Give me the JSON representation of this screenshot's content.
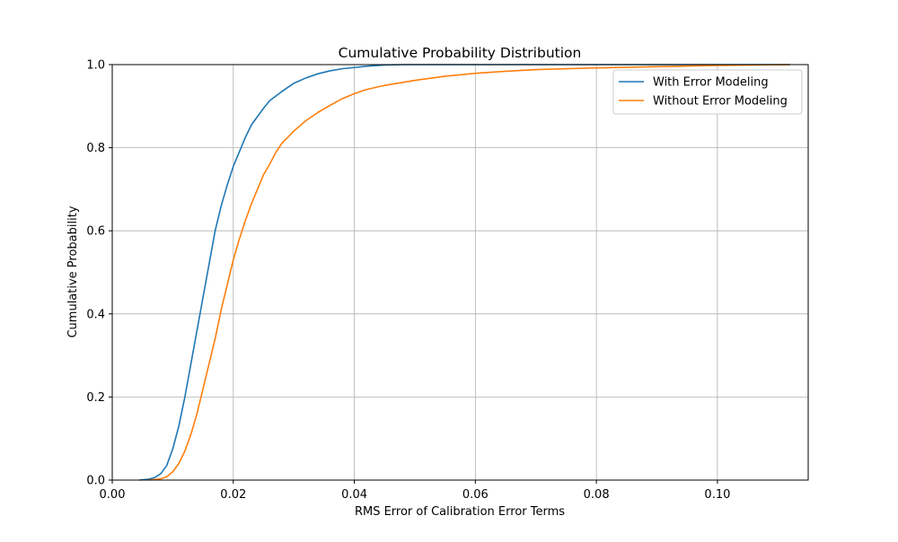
{
  "chart_data": {
    "type": "line",
    "title": "Cumulative Probability Distribution",
    "xlabel": "RMS Error of Calibration Error Terms",
    "ylabel": "Cumulative Probability",
    "xlim": [
      0.0,
      0.115
    ],
    "ylim": [
      0.0,
      1.0
    ],
    "x_ticks": [
      0.0,
      0.02,
      0.04,
      0.06,
      0.08,
      0.1
    ],
    "x_tick_labels": [
      "0.00",
      "0.02",
      "0.04",
      "0.06",
      "0.08",
      "0.10"
    ],
    "y_ticks": [
      0.0,
      0.2,
      0.4,
      0.6,
      0.8,
      1.0
    ],
    "y_tick_labels": [
      "0.0",
      "0.2",
      "0.4",
      "0.6",
      "0.8",
      "1.0"
    ],
    "grid": true,
    "legend_position": "top-right",
    "series": [
      {
        "name": "With Error Modeling",
        "color": "#1f77b4",
        "points": [
          [
            0.0045,
            0.0
          ],
          [
            0.006,
            0.002
          ],
          [
            0.007,
            0.006
          ],
          [
            0.008,
            0.015
          ],
          [
            0.009,
            0.035
          ],
          [
            0.01,
            0.075
          ],
          [
            0.011,
            0.13
          ],
          [
            0.012,
            0.2
          ],
          [
            0.013,
            0.28
          ],
          [
            0.014,
            0.36
          ],
          [
            0.015,
            0.44
          ],
          [
            0.016,
            0.52
          ],
          [
            0.017,
            0.6
          ],
          [
            0.018,
            0.66
          ],
          [
            0.019,
            0.71
          ],
          [
            0.02,
            0.755
          ],
          [
            0.021,
            0.79
          ],
          [
            0.022,
            0.825
          ],
          [
            0.023,
            0.855
          ],
          [
            0.024,
            0.875
          ],
          [
            0.025,
            0.895
          ],
          [
            0.026,
            0.913
          ],
          [
            0.028,
            0.935
          ],
          [
            0.03,
            0.955
          ],
          [
            0.032,
            0.968
          ],
          [
            0.034,
            0.978
          ],
          [
            0.036,
            0.985
          ],
          [
            0.038,
            0.99
          ],
          [
            0.04,
            0.993
          ],
          [
            0.042,
            0.996
          ],
          [
            0.045,
            0.999
          ],
          [
            0.048,
            1.0
          ],
          [
            0.06,
            1.0
          ],
          [
            0.08,
            1.0
          ],
          [
            0.1,
            1.0
          ],
          [
            0.112,
            1.0
          ]
        ]
      },
      {
        "name": "Without Error Modeling",
        "color": "#ff7f0e",
        "points": [
          [
            0.006,
            0.0
          ],
          [
            0.008,
            0.003
          ],
          [
            0.009,
            0.008
          ],
          [
            0.01,
            0.02
          ],
          [
            0.011,
            0.04
          ],
          [
            0.012,
            0.07
          ],
          [
            0.013,
            0.11
          ],
          [
            0.014,
            0.16
          ],
          [
            0.015,
            0.22
          ],
          [
            0.016,
            0.28
          ],
          [
            0.017,
            0.34
          ],
          [
            0.018,
            0.41
          ],
          [
            0.019,
            0.47
          ],
          [
            0.02,
            0.53
          ],
          [
            0.021,
            0.58
          ],
          [
            0.022,
            0.625
          ],
          [
            0.023,
            0.665
          ],
          [
            0.024,
            0.7
          ],
          [
            0.025,
            0.735
          ],
          [
            0.026,
            0.76
          ],
          [
            0.027,
            0.788
          ],
          [
            0.028,
            0.81
          ],
          [
            0.03,
            0.84
          ],
          [
            0.032,
            0.865
          ],
          [
            0.034,
            0.885
          ],
          [
            0.036,
            0.902
          ],
          [
            0.038,
            0.918
          ],
          [
            0.04,
            0.93
          ],
          [
            0.042,
            0.94
          ],
          [
            0.045,
            0.95
          ],
          [
            0.05,
            0.962
          ],
          [
            0.055,
            0.972
          ],
          [
            0.06,
            0.979
          ],
          [
            0.065,
            0.984
          ],
          [
            0.07,
            0.988
          ],
          [
            0.08,
            0.992
          ],
          [
            0.09,
            0.995
          ],
          [
            0.1,
            0.998
          ],
          [
            0.112,
            1.0
          ]
        ]
      }
    ]
  }
}
